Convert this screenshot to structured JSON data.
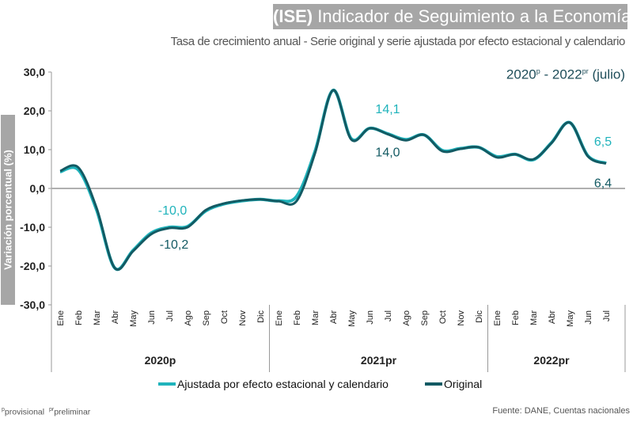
{
  "header": {
    "title_bold": "(ISE)",
    "title_rest": "Indicador de Seguimiento a la Economía",
    "subtitle": "Tasa de crecimiento anual - Serie original y serie ajustada por efecto estacional y calendario",
    "period_start": "2020",
    "period_start_sup": "p",
    "period_sep": " - ",
    "period_end": "2022",
    "period_end_sup": "pr",
    "period_note": "(julio)"
  },
  "footer": {
    "note1_sup": "p",
    "note1": "provisional",
    "note2_sup": "pr",
    "note2": "preliminar",
    "source": "Fuente: DANE, Cuentas nacionales"
  },
  "colors": {
    "adjusted": "#1fb3bb",
    "original": "#135a63",
    "axis": "#999999",
    "title_bg": "#a6a6a6"
  },
  "chart_data": {
    "type": "line",
    "title": "(ISE) Indicador de Seguimiento a la Economía",
    "subtitle": "Tasa de crecimiento anual - Serie original y serie ajustada por efecto estacional y calendario",
    "ylabel": "Variación porcentual (%)",
    "xlabel": "",
    "ylim": [
      -30,
      30
    ],
    "yticks": [
      "30,0",
      "20,0",
      "10,0",
      "0,0",
      "-10,0",
      "-20,0",
      "-30,0"
    ],
    "ytick_values": [
      30,
      20,
      10,
      0,
      -10,
      -20,
      -30
    ],
    "grid": false,
    "legend_position": "bottom",
    "year_groups": [
      {
        "label": "2020p",
        "months": [
          "Ene",
          "Feb",
          "Mar",
          "Abr",
          "May",
          "Jun",
          "Jul",
          "Ago",
          "Sep",
          "Oct",
          "Nov",
          "Dic"
        ]
      },
      {
        "label": "2021pr",
        "months": [
          "Ene",
          "Feb",
          "Mar",
          "Abr",
          "May",
          "Jun",
          "Jul",
          "Ago",
          "Sep",
          "Oct",
          "Nov",
          "Dic"
        ]
      },
      {
        "label": "2022pr",
        "months": [
          "Ene",
          "Feb",
          "Mar",
          "Abr",
          "May",
          "Jun",
          "Jul"
        ]
      }
    ],
    "series": [
      {
        "name": "Ajustada por efecto estacional y calendario",
        "key": "adjusted",
        "values": [
          4.3,
          4.8,
          -5.5,
          -20.5,
          -16.0,
          -11.5,
          -10.0,
          -9.8,
          -5.8,
          -4.0,
          -3.2,
          -2.8,
          -3.2,
          -2.0,
          9.5,
          25.3,
          12.8,
          15.5,
          14.1,
          12.6,
          13.8,
          9.8,
          10.3,
          10.6,
          8.2,
          8.8,
          7.4,
          11.8,
          17.0,
          8.4,
          6.5
        ]
      },
      {
        "name": "Original",
        "key": "original",
        "values": [
          4.5,
          5.4,
          -5.0,
          -20.5,
          -16.2,
          -11.8,
          -10.2,
          -10.0,
          -5.6,
          -3.9,
          -3.1,
          -2.8,
          -3.3,
          -3.2,
          9.0,
          25.3,
          12.6,
          15.5,
          14.0,
          12.4,
          13.8,
          9.6,
          10.2,
          10.6,
          8.0,
          8.8,
          7.5,
          11.7,
          17.0,
          8.3,
          6.4
        ]
      }
    ],
    "annotations": [
      {
        "series": "adjusted",
        "month_index": 6,
        "text": "-10,0"
      },
      {
        "series": "original",
        "month_index": 6,
        "text": "-10,2"
      },
      {
        "series": "adjusted",
        "month_index": 18,
        "text": "14,1"
      },
      {
        "series": "original",
        "month_index": 18,
        "text": "14,0"
      },
      {
        "series": "adjusted",
        "month_index": 30,
        "text": "6,5"
      },
      {
        "series": "original",
        "month_index": 30,
        "text": "6,4"
      }
    ]
  }
}
